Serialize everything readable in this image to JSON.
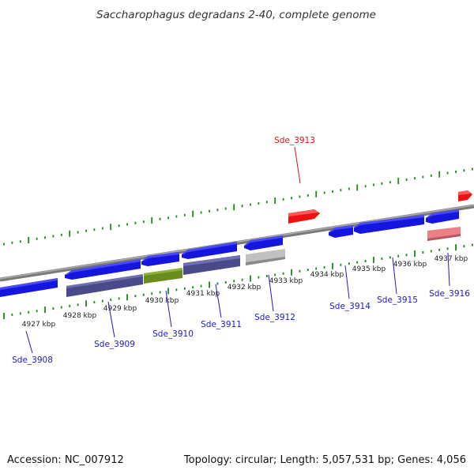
{
  "header": {
    "title": "Saccharophagus degradans 2-40, complete genome"
  },
  "footer": {
    "accession": "Accession: NC_007912",
    "summary": "Topology: circular; Length: 5,057,531 bp; Genes: 4,056"
  },
  "colors": {
    "backbone": "#888888",
    "tick": "#1a8a1a",
    "label_blue": "#1a1acc",
    "label_red": "#dd1111",
    "cds_blue": "#1515e0",
    "cds_navy": "#4a4a8a",
    "cds_green": "#6a8c1e",
    "cds_gray": "#c0c0c0",
    "cds_red": "#ee1111",
    "cds_pink": "#ee7f86"
  },
  "ticks": [
    "4927 kbp",
    "4928 kbp",
    "4929 kbp",
    "4930 kbp",
    "4931 kbp",
    "4932 kbp",
    "4933 kbp",
    "4934 kbp",
    "4935 kbp",
    "4936 kbp",
    "4937 kbp"
  ],
  "gene_labels": {
    "sde_3908": "Sde_3908",
    "sde_3909": "Sde_3909",
    "sde_3910": "Sde_3910",
    "sde_3911": "Sde_3911",
    "sde_3912": "Sde_3912",
    "sde_3913": "Sde_3913",
    "sde_3914": "Sde_3914",
    "sde_3915": "Sde_3915",
    "sde_3916": "Sde_3916"
  }
}
